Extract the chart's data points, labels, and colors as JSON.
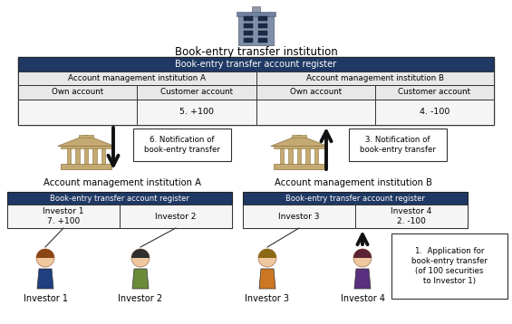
{
  "title_institution": "Book-entry transfer institution",
  "top_register_label": "Book-entry transfer account register",
  "inst_a_label": "Account management institution A",
  "inst_b_label": "Account management institution B",
  "own_account": "Own account",
  "customer_account": "Customer account",
  "notif_6": "6. Notification of\nbook-entry transfer",
  "notif_3": "3. Notification of\nbook-entry transfer",
  "inst_a_title": "Account management institution A",
  "inst_b_title": "Account management institution B",
  "bot_register_label": "Book-entry transfer account register",
  "bot_cell_a1": "Investor 1\n7. +100",
  "bot_cell_a2": "Investor 2",
  "bot_cell_b1": "Investor 3",
  "bot_cell_b2": "Investor 4\n2. -100",
  "app_note": "1.  Application for\nbook-entry transfer\n(of 100 securities\nto Investor 1)",
  "inv1": "Investor 1",
  "inv2": "Investor 2",
  "inv3": "Investor 3",
  "inv4": "Investor 4",
  "dark_blue": "#1F3864",
  "white": "#FFFFFF",
  "light_gray": "#E8E8E8",
  "very_light_gray": "#F5F5F5",
  "arrow_color": "#111111",
  "bg_color": "#FFFFFF",
  "top_val_a": "5. +100",
  "top_val_b": "4. -100"
}
